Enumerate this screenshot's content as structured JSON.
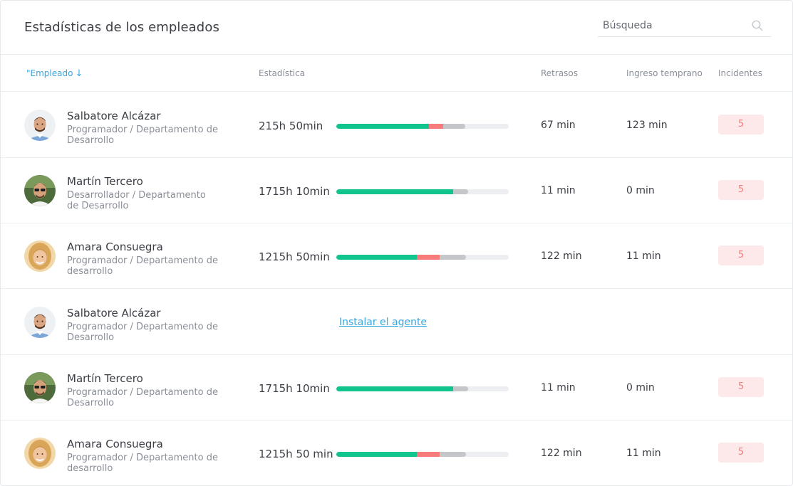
{
  "header": {
    "title": "Estadísticas de los empleados",
    "search_placeholder": "Búsqueda"
  },
  "columns": {
    "employee": "\"Empleado",
    "sort_arrow": "↓",
    "statistic": "Estadística",
    "delays": "Retrasos",
    "early": "Ingreso temprano",
    "incidents": "Incidentes"
  },
  "colors": {
    "worked": "#10c48d",
    "delay": "#f77b7b",
    "other": "#c4c6ca",
    "accent": "#3aa6e0"
  },
  "rows": [
    {
      "name": "Salbatore Alcázar",
      "role": "Programador / Departamento de Desarrollo",
      "hours": "215h 50min",
      "bar": {
        "green": 0.537,
        "red": 0.083,
        "gray": 0.128
      },
      "delay": "67 min",
      "early": "123 min",
      "incidents": "5",
      "avatar": "man-beard-blue-shirt"
    },
    {
      "name": "Martín Tercero",
      "role": "Desarrollador / Departamento de Desarrollo",
      "hours": "1715h 10min",
      "bar": {
        "green": 0.678,
        "red": 0,
        "gray": 0.087
      },
      "delay": "11 min",
      "early": "0 min",
      "incidents": "5",
      "avatar": "man-sunglasses"
    },
    {
      "name": "Amara Consuegra",
      "role": "Programador / Departamento de desarrollo",
      "hours": "1215h 50min",
      "bar": {
        "green": 0.467,
        "red": 0.132,
        "gray": 0.153
      },
      "delay": "122 min",
      "early": "11 min",
      "incidents": "5",
      "avatar": "woman-blonde"
    },
    {
      "name": "Salbatore Alcázar",
      "role": "Programador / Departamento de Desarrollo",
      "install_link": "Instalar el agente",
      "avatar": "man-beard-blue-shirt"
    },
    {
      "name": "Martín Tercero",
      "role": "Programador / Departamento de Desarrollo",
      "hours": "1715h 10min",
      "bar": {
        "green": 0.678,
        "red": 0,
        "gray": 0.087
      },
      "delay": "11 min",
      "early": "0 min",
      "incidents": "5",
      "avatar": "man-sunglasses"
    },
    {
      "name": "Amara Consuegra",
      "role": "Programador / Departamento de desarrollo",
      "hours": "1215h 50 min",
      "bar": {
        "green": 0.467,
        "red": 0.132,
        "gray": 0.153
      },
      "delay": "122 min",
      "early": "11 min",
      "incidents": "5",
      "avatar": "woman-blonde"
    }
  ]
}
